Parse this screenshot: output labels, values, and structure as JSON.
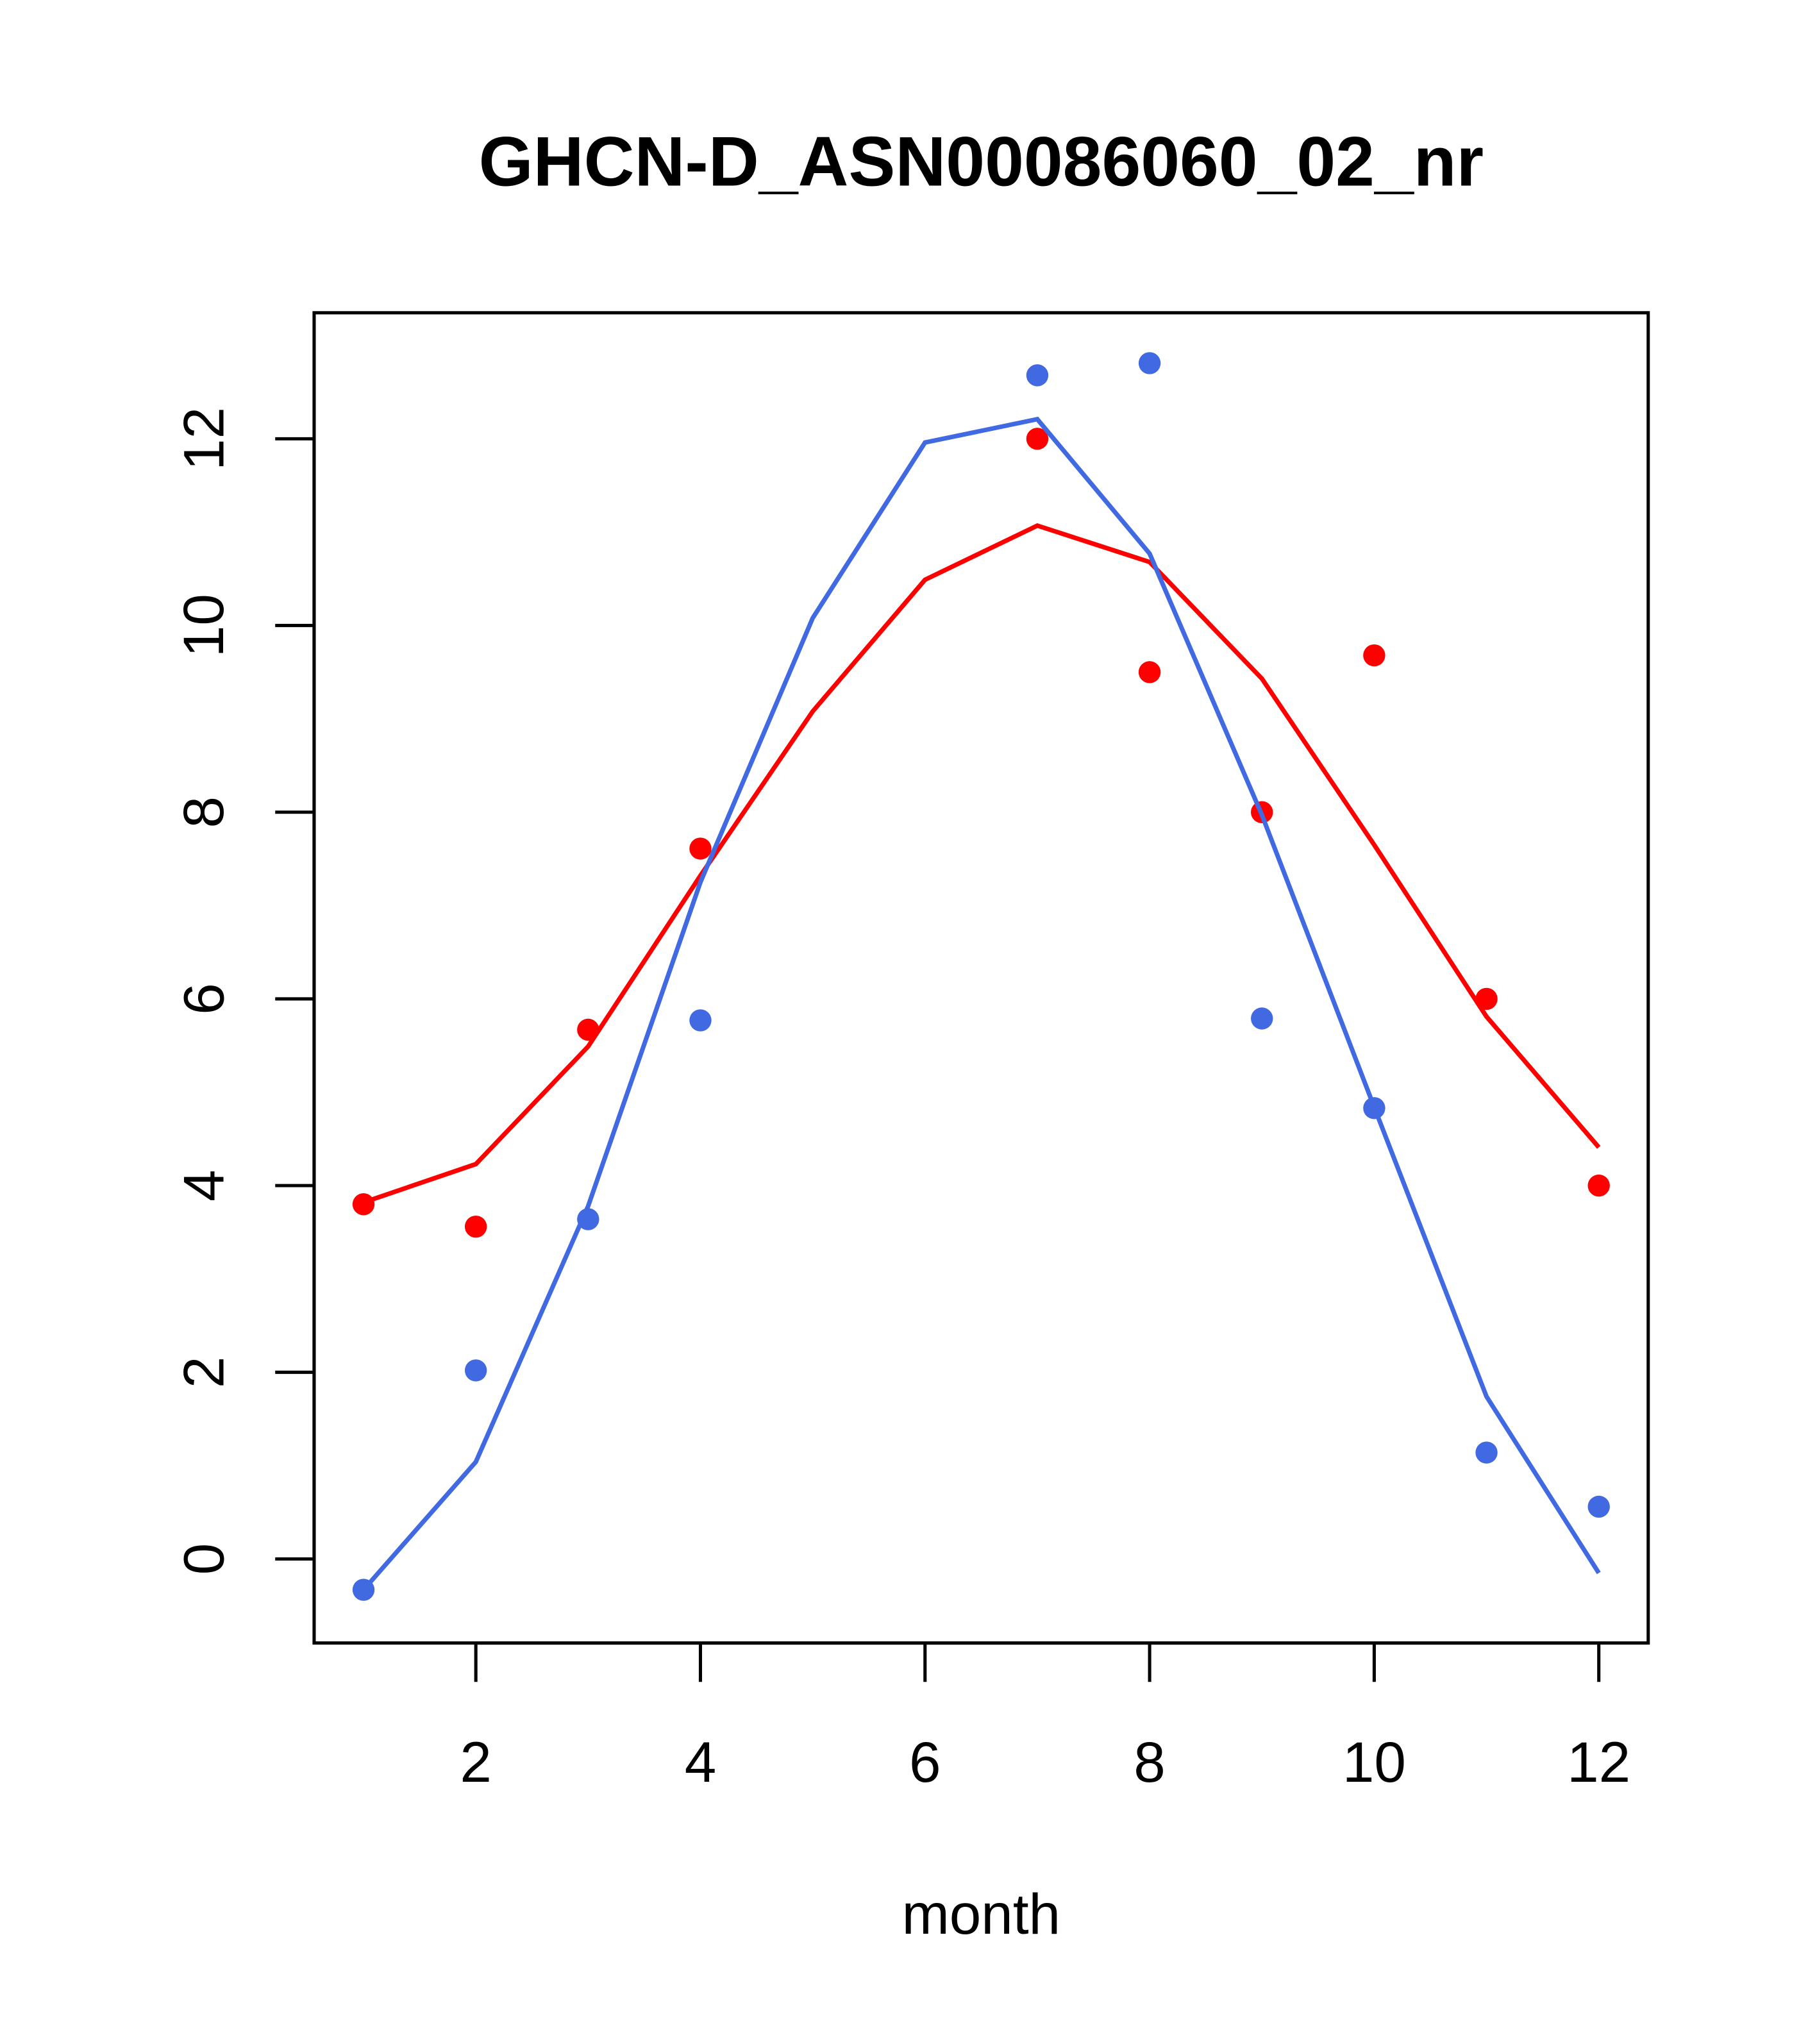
{
  "chart_data": {
    "type": "line",
    "title": "GHCN-D_ASN00086060_02_nr",
    "xlabel": "month",
    "ylabel": "",
    "xlim": [
      0.56,
      12.44
    ],
    "ylim": [
      -0.9,
      13.35
    ],
    "xticks": [
      2,
      4,
      6,
      8,
      10,
      12
    ],
    "yticks": [
      0,
      2,
      4,
      6,
      8,
      10,
      12
    ],
    "grid": false,
    "x": [
      1,
      2,
      3,
      4,
      5,
      6,
      7,
      8,
      9,
      10,
      11,
      12
    ],
    "series": [
      {
        "name": "red-points",
        "kind": "points",
        "color": "#FF0000",
        "values": [
          3.8,
          3.56,
          5.67,
          7.61,
          null,
          null,
          12.0,
          9.5,
          8.0,
          9.68,
          6.0,
          4.0
        ]
      },
      {
        "name": "red-line",
        "kind": "line",
        "color": "#FF0000",
        "values": [
          3.82,
          4.23,
          5.49,
          7.32,
          9.08,
          10.49,
          11.07,
          10.68,
          9.43,
          7.65,
          5.81,
          4.41
        ]
      },
      {
        "name": "blue-points",
        "kind": "points",
        "color": "#4169E1",
        "values": [
          -0.33,
          2.02,
          3.64,
          5.77,
          null,
          null,
          12.68,
          12.81,
          5.79,
          4.83,
          1.14,
          0.56
        ]
      },
      {
        "name": "blue-line",
        "kind": "line",
        "color": "#4169E1",
        "values": [
          -0.33,
          1.04,
          3.78,
          7.25,
          10.08,
          11.96,
          12.21,
          10.77,
          7.97,
          4.84,
          1.74,
          -0.15
        ]
      }
    ]
  }
}
